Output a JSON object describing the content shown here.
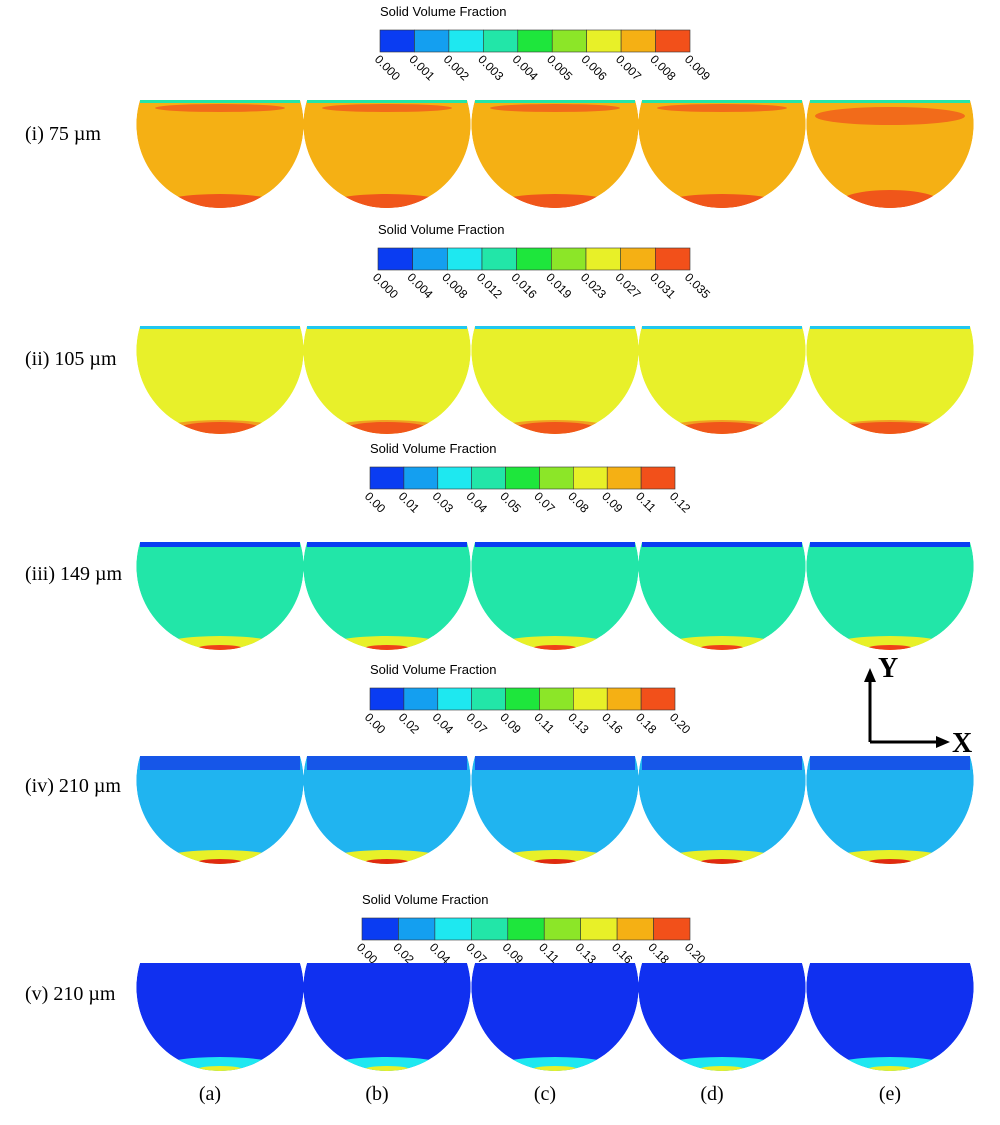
{
  "figure": {
    "rows": [
      {
        "label": "(i) 75 µm",
        "colorbar": {
          "title": "Solid Volume Fraction",
          "ticks": [
            "0.000",
            "0.001",
            "0.002",
            "0.003",
            "0.004",
            "0.005",
            "0.006",
            "0.007",
            "0.008",
            "0.009"
          ]
        }
      },
      {
        "label": "(ii) 105 µm",
        "colorbar": {
          "title": "Solid Volume Fraction",
          "ticks": [
            "0.000",
            "0.004",
            "0.008",
            "0.012",
            "0.016",
            "0.019",
            "0.023",
            "0.027",
            "0.031",
            "0.035"
          ]
        }
      },
      {
        "label": "(iii) 149 µm",
        "colorbar": {
          "title": "Solid Volume Fraction",
          "ticks": [
            "0.00",
            "0.01",
            "0.03",
            "0.04",
            "0.05",
            "0.07",
            "0.08",
            "0.09",
            "0.11",
            "0.12"
          ]
        }
      },
      {
        "label": "(iv) 210 µm",
        "colorbar": {
          "title": "Solid Volume Fraction",
          "ticks": [
            "0.00",
            "0.02",
            "0.04",
            "0.07",
            "0.09",
            "0.11",
            "0.13",
            "0.16",
            "0.18",
            "0.20"
          ]
        }
      },
      {
        "label": "(v) 210 µm",
        "colorbar": {
          "title": "Solid Volume Fraction",
          "ticks": [
            "0.00",
            "0.02",
            "0.04",
            "0.07",
            "0.09",
            "0.11",
            "0.13",
            "0.16",
            "0.18",
            "0.20"
          ]
        }
      }
    ],
    "columns": [
      "(a)",
      "(b)",
      "(c)",
      "(d)",
      "(e)"
    ],
    "axes": {
      "y": "Y",
      "x": "X"
    }
  }
}
